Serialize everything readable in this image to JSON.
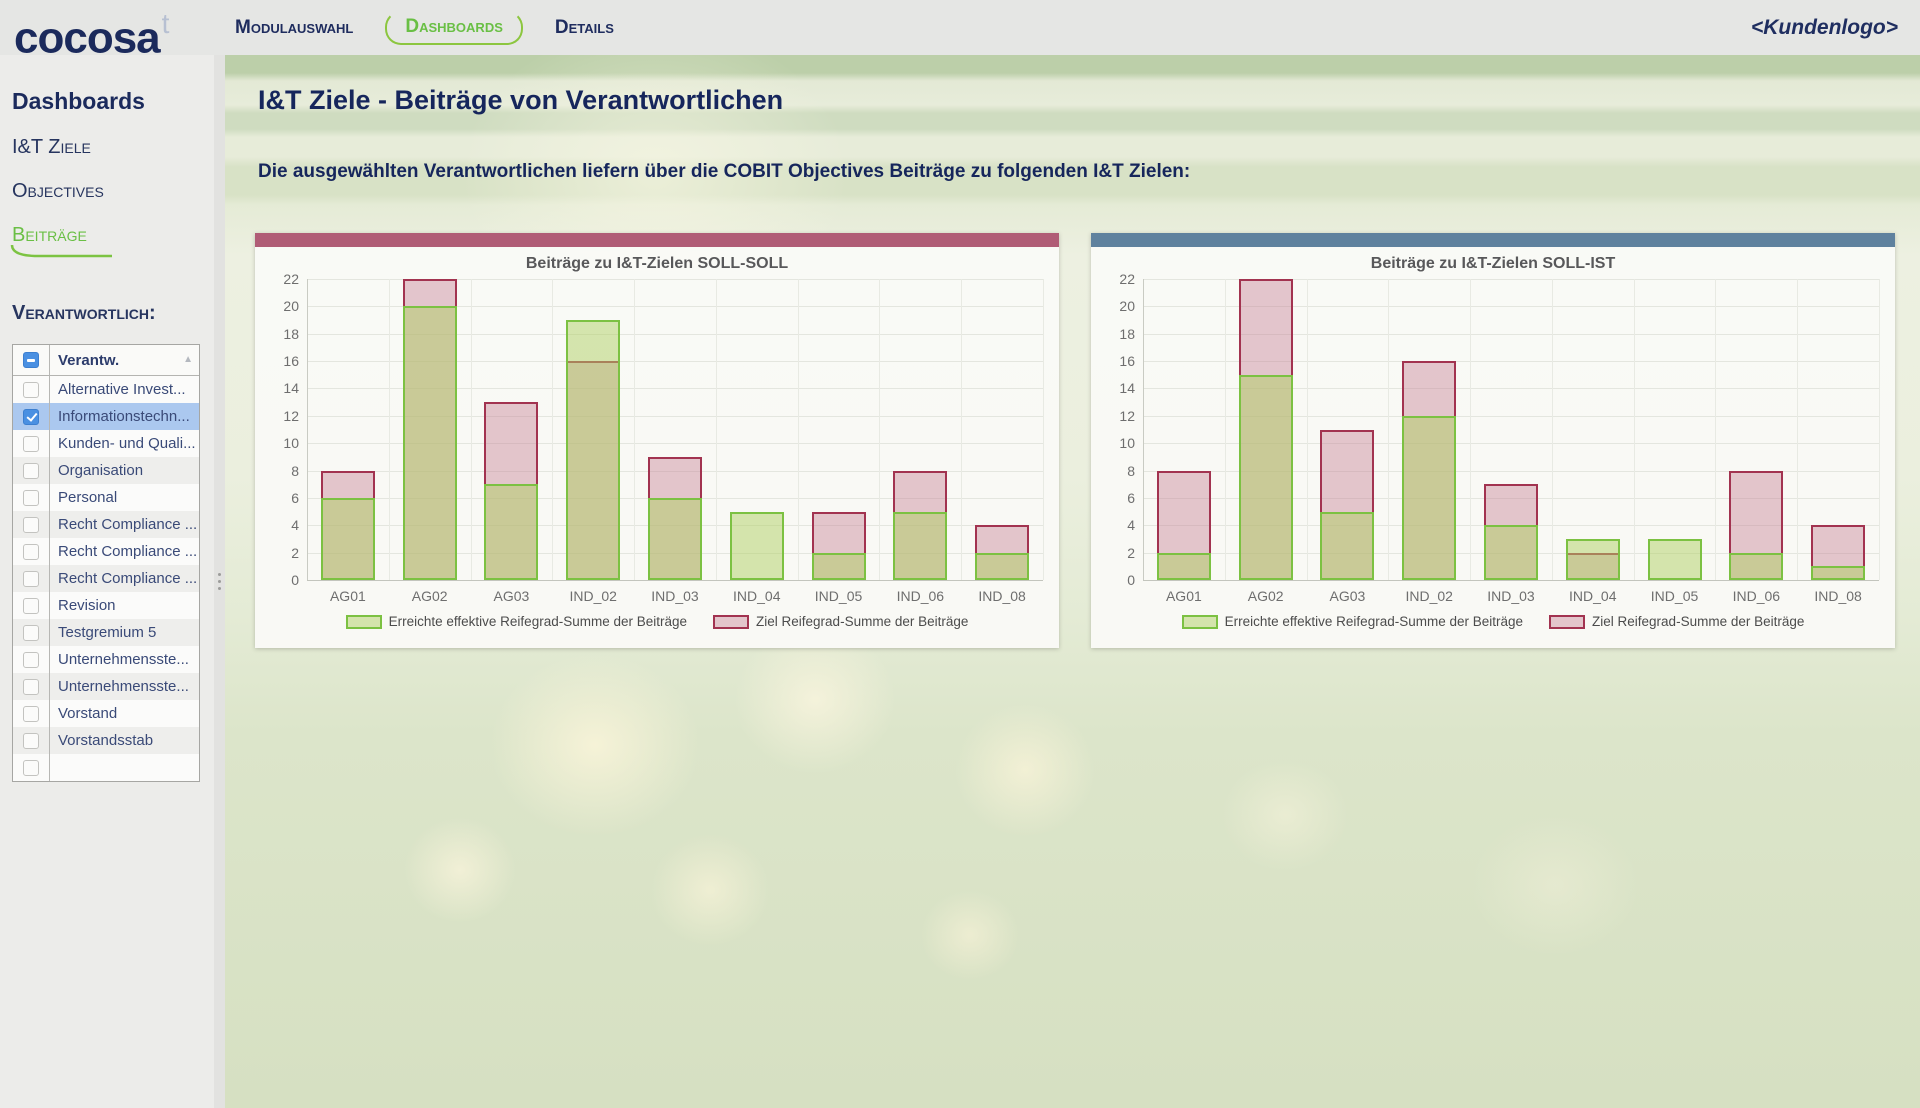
{
  "brand": {
    "name": "cocosa",
    "superscript": "t"
  },
  "nav": {
    "items": [
      {
        "label": "Modulauswahl",
        "active": false
      },
      {
        "label": "Dashboards",
        "active": true
      },
      {
        "label": "Details",
        "active": false
      }
    ],
    "customer_logo_placeholder": "<Kundenlogo>"
  },
  "sidebar": {
    "section_title": "Dashboards",
    "items": [
      {
        "label": "I&T Ziele",
        "active": false
      },
      {
        "label": "Objectives",
        "active": false
      },
      {
        "label": "Beiträge",
        "active": true
      }
    ],
    "filter": {
      "label": "Verantwortlich:",
      "column_header": "Verantw.",
      "header_checkbox_state": "indeterminate",
      "sort": "ascending",
      "rows": [
        {
          "label": "Alternative Invest...",
          "checked": false,
          "selected": false
        },
        {
          "label": "Informationstechn...",
          "checked": true,
          "selected": true
        },
        {
          "label": "Kunden- und Quali...",
          "checked": false,
          "selected": false
        },
        {
          "label": "Organisation",
          "checked": false,
          "selected": false
        },
        {
          "label": "Personal",
          "checked": false,
          "selected": false
        },
        {
          "label": "Recht Compliance ...",
          "checked": false,
          "selected": false
        },
        {
          "label": "Recht Compliance ...",
          "checked": false,
          "selected": false
        },
        {
          "label": "Recht Compliance ...",
          "checked": false,
          "selected": false
        },
        {
          "label": "Revision",
          "checked": false,
          "selected": false
        },
        {
          "label": "Testgremium 5",
          "checked": false,
          "selected": false
        },
        {
          "label": "Unternehmensste...",
          "checked": false,
          "selected": false
        },
        {
          "label": "Unternehmensste...",
          "checked": false,
          "selected": false
        },
        {
          "label": "Vorstand",
          "checked": false,
          "selected": false
        },
        {
          "label": "Vorstandsstab",
          "checked": false,
          "selected": false
        },
        {
          "label": "",
          "checked": false,
          "selected": false
        }
      ]
    }
  },
  "main": {
    "title": "I&T Ziele - Beiträge von Verantwortlichen",
    "subtitle": "Die ausgewählten Verantwortlichen liefern über die COBIT Objectives Beiträge zu folgenden I&T Zielen:"
  },
  "chart_data": [
    {
      "type": "bar",
      "bar_mode": "overlay",
      "title": "Beiträge zu I&T-Zielen SOLL-SOLL",
      "accent_color": "#b05c76",
      "categories": [
        "AG01",
        "AG02",
        "AG03",
        "IND_02",
        "IND_03",
        "IND_04",
        "IND_05",
        "IND_06",
        "IND_08"
      ],
      "series": [
        {
          "key": "erreicht",
          "name": "Erreichte effektive Reifegrad-Summe der Beiträge",
          "border_color": "#7cc142",
          "fill_color": "rgba(176,207,99,0.5)",
          "values": [
            6,
            20,
            7,
            19,
            6,
            5,
            2,
            5,
            2
          ]
        },
        {
          "key": "ziel",
          "name": "Ziel Reifegrad-Summe der Beiträge",
          "border_color": "#a23350",
          "fill_color": "rgba(199,134,154,0.45)",
          "values": [
            8,
            22,
            13,
            16,
            9,
            0,
            5,
            8,
            4
          ]
        }
      ],
      "xlabel": "",
      "ylabel": "",
      "ylim": [
        0,
        22
      ],
      "ytick_step": 2,
      "yticks": [
        0,
        2,
        4,
        6,
        8,
        10,
        12,
        14,
        16,
        18,
        20,
        22
      ],
      "grid": true,
      "legend_position": "bottom"
    },
    {
      "type": "bar",
      "bar_mode": "overlay",
      "title": "Beiträge zu I&T-Zielen SOLL-IST",
      "accent_color": "#5f819e",
      "categories": [
        "AG01",
        "AG02",
        "AG03",
        "IND_02",
        "IND_03",
        "IND_04",
        "IND_05",
        "IND_06",
        "IND_08"
      ],
      "series": [
        {
          "key": "erreicht",
          "name": "Erreichte effektive Reifegrad-Summe der Beiträge",
          "border_color": "#7cc142",
          "fill_color": "rgba(176,207,99,0.5)",
          "values": [
            2,
            15,
            5,
            12,
            4,
            3,
            3,
            2,
            1
          ]
        },
        {
          "key": "ziel",
          "name": "Ziel Reifegrad-Summe der Beiträge",
          "border_color": "#a23350",
          "fill_color": "rgba(199,134,154,0.45)",
          "values": [
            8,
            22,
            11,
            16,
            7,
            2,
            0,
            8,
            4
          ]
        }
      ],
      "xlabel": "",
      "ylabel": "",
      "ylim": [
        0,
        22
      ],
      "ytick_step": 2,
      "yticks": [
        0,
        2,
        4,
        6,
        8,
        10,
        12,
        14,
        16,
        18,
        20,
        22
      ],
      "grid": true,
      "legend_position": "bottom"
    }
  ],
  "colors": {
    "navy_text": "#1e2c5e",
    "green_accent": "#76c043",
    "chart1_accent": "#b05c76",
    "chart2_accent": "#5f819e",
    "bar_green_border": "#7cc142",
    "bar_red_border": "#a23350",
    "selected_row": "#abc8ef",
    "checkbox_blue": "#4a90e2"
  }
}
